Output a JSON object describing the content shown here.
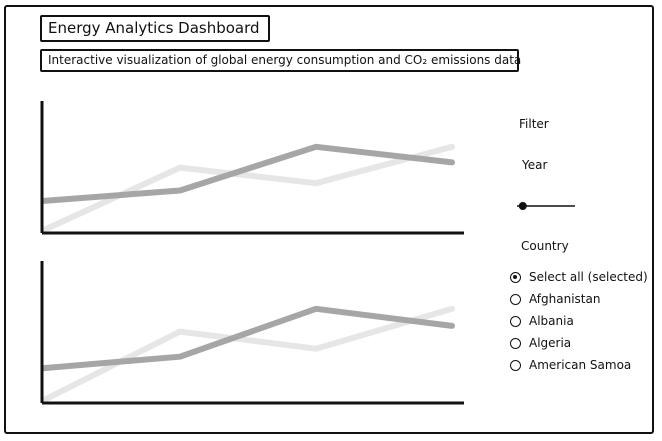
{
  "header": {
    "title": "Energy Analytics Dashboard",
    "subtitle": "Interactive visualization of global energy consumption and CO₂ emissions data"
  },
  "filter": {
    "heading": "Filter",
    "year_label": "Year",
    "year_slider_position": 0.1,
    "country_label": "Country",
    "countries": [
      {
        "label": "Select all (selected)",
        "checked": true
      },
      {
        "label": "Afghanistan",
        "checked": false
      },
      {
        "label": "Albania",
        "checked": false
      },
      {
        "label": "Algeria",
        "checked": false
      },
      {
        "label": "American Samoa",
        "checked": false
      }
    ]
  },
  "colors": {
    "axis": "#111111",
    "series_dark": "#a6a6a6",
    "series_light": "#e6e6e6"
  },
  "chart_data": [
    {
      "type": "line",
      "x": [
        0,
        1,
        2,
        3
      ],
      "series": [
        {
          "values": [
            0,
            0.6,
            0.45,
            0.8
          ],
          "color": "#e6e6e6"
        },
        {
          "values": [
            0.28,
            0.38,
            0.8,
            0.65
          ],
          "color": "#a6a6a6"
        }
      ],
      "ylim": [
        0,
        1
      ]
    },
    {
      "type": "line",
      "x": [
        0,
        1,
        2,
        3
      ],
      "series": [
        {
          "values": [
            0,
            0.6,
            0.45,
            0.8
          ],
          "color": "#e6e6e6"
        },
        {
          "values": [
            0.28,
            0.38,
            0.8,
            0.65
          ],
          "color": "#a6a6a6"
        }
      ],
      "ylim": [
        0,
        1
      ]
    }
  ]
}
